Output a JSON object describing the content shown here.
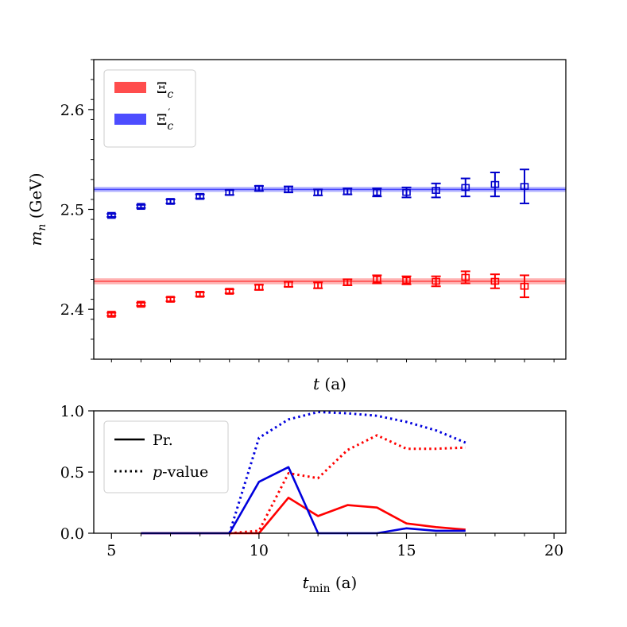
{
  "chart_data": [
    {
      "type": "scatter",
      "panel": "top",
      "xlabel": "t (a)",
      "ylabel": "m_n (GeV)",
      "ylabel_display": {
        "main": "m",
        "sub": "n",
        "tail": " (GeV)"
      },
      "xlabel_display": {
        "main": "t",
        "tail": " (a)"
      },
      "xlim": [
        4.4,
        20.4
      ],
      "ylim": [
        2.35,
        2.65
      ],
      "yticks": [
        2.4,
        2.5,
        2.6
      ],
      "ytick_labels": [
        "2.4",
        "2.5",
        "2.6"
      ],
      "grid": false,
      "legend": {
        "placement": "top-left",
        "entries": [
          {
            "name": "Ξc",
            "base": "Ξ",
            "sub": "c",
            "sup": "",
            "color": "#ff4d4d"
          },
          {
            "name": "Ξ′c",
            "base": "Ξ",
            "sub": "c",
            "sup": "′",
            "color": "#4d4dff"
          }
        ]
      },
      "bands": [
        {
          "series": "Ξc",
          "center": 2.428,
          "halfwidth": 0.003,
          "x_range": [
            4.4,
            20.4
          ],
          "color": "#ff0000"
        },
        {
          "series": "Ξ′c",
          "center": 2.52,
          "halfwidth": 0.0025,
          "x_range": [
            4.4,
            20.4
          ],
          "color": "#0000ff"
        }
      ],
      "series": [
        {
          "name": "Ξc",
          "color": "#ff0000",
          "marker": "square-open",
          "x": [
            5,
            6,
            7,
            8,
            9,
            10,
            11,
            12,
            13,
            14,
            15,
            16,
            17,
            18,
            19
          ],
          "y": [
            2.395,
            2.405,
            2.41,
            2.415,
            2.418,
            2.422,
            2.425,
            2.424,
            2.427,
            2.43,
            2.429,
            2.428,
            2.432,
            2.428,
            2.423
          ],
          "err": [
            0.0015,
            0.0015,
            0.002,
            0.002,
            0.002,
            0.0025,
            0.0025,
            0.003,
            0.003,
            0.004,
            0.004,
            0.005,
            0.006,
            0.007,
            0.011
          ]
        },
        {
          "name": "Ξ′c",
          "color": "#0000cc",
          "marker": "square-open",
          "x": [
            5,
            6,
            7,
            8,
            9,
            10,
            11,
            12,
            13,
            14,
            15,
            16,
            17,
            18,
            19
          ],
          "y": [
            2.494,
            2.503,
            2.508,
            2.513,
            2.517,
            2.521,
            2.52,
            2.517,
            2.518,
            2.517,
            2.517,
            2.519,
            2.522,
            2.525,
            2.523
          ],
          "err": [
            0.0015,
            0.0015,
            0.002,
            0.002,
            0.0025,
            0.0025,
            0.003,
            0.003,
            0.003,
            0.004,
            0.005,
            0.007,
            0.009,
            0.012,
            0.017
          ]
        }
      ]
    },
    {
      "type": "line",
      "panel": "bottom",
      "xlabel": "t_min (a)",
      "xlabel_display": {
        "main": "t",
        "sub": "min",
        "tail": " (a)"
      },
      "xlim": [
        4.4,
        20.4
      ],
      "ylim": [
        0.0,
        1.0
      ],
      "xticks": [
        5,
        10,
        15,
        20
      ],
      "xtick_labels": [
        "5",
        "10",
        "15",
        "20"
      ],
      "yticks": [
        0.0,
        0.5,
        1.0
      ],
      "ytick_labels": [
        "0.0",
        "0.5",
        "1.0"
      ],
      "grid": false,
      "legend": {
        "placement": "top-left",
        "entries": [
          {
            "name": "Pr.",
            "style": "solid",
            "main": "Pr.",
            "italic_prefix": ""
          },
          {
            "name": "p-value",
            "style": "dotted",
            "main": "-value",
            "italic_prefix": "p"
          }
        ]
      },
      "series": [
        {
          "name": "Ξc Pr.",
          "color": "#ff0000",
          "style": "solid",
          "x": [
            6,
            7,
            8,
            9,
            10,
            11,
            12,
            13,
            14,
            15,
            16,
            17
          ],
          "y": [
            0.0,
            0.0,
            0.0,
            0.0,
            0.0,
            0.29,
            0.14,
            0.23,
            0.21,
            0.08,
            0.05,
            0.03
          ]
        },
        {
          "name": "Ξ′c Pr.",
          "color": "#0000dd",
          "style": "solid",
          "x": [
            6,
            7,
            8,
            9,
            10,
            11,
            12,
            13,
            14,
            15,
            16,
            17
          ],
          "y": [
            0.0,
            0.0,
            0.0,
            0.0,
            0.42,
            0.54,
            0.0,
            0.0,
            0.0,
            0.04,
            0.02,
            0.02
          ]
        },
        {
          "name": "Ξc p-value",
          "color": "#ff0000",
          "style": "dotted",
          "x": [
            9,
            10,
            11,
            12,
            13,
            14,
            15,
            16,
            17
          ],
          "y": [
            0.0,
            0.02,
            0.49,
            0.45,
            0.68,
            0.8,
            0.69,
            0.69,
            0.7
          ]
        },
        {
          "name": "Ξ′c p-value",
          "color": "#0000dd",
          "style": "dotted",
          "x": [
            9,
            10,
            11,
            12,
            13,
            14,
            15,
            16,
            17
          ],
          "y": [
            0.0,
            0.78,
            0.93,
            0.99,
            0.98,
            0.96,
            0.91,
            0.84,
            0.74
          ]
        }
      ]
    }
  ]
}
